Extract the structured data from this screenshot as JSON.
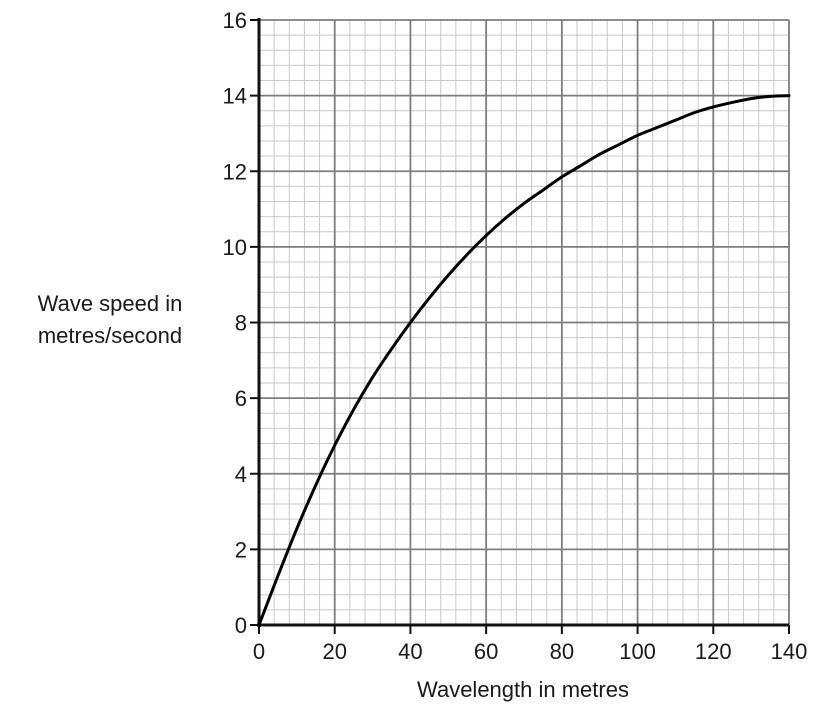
{
  "chart_data": {
    "type": "line",
    "title": "",
    "xlabel": "Wavelength in metres",
    "ylabel_lines": [
      "Wave speed in",
      "metres/second"
    ],
    "xlim": [
      0,
      140
    ],
    "ylim": [
      0,
      16
    ],
    "x_ticks": [
      0,
      20,
      40,
      60,
      80,
      100,
      120,
      140
    ],
    "y_ticks": [
      0,
      2,
      4,
      6,
      8,
      10,
      12,
      14,
      16
    ],
    "x_tick_labels": [
      "0",
      "20",
      "40",
      "60",
      "80",
      "100",
      "120",
      "140"
    ],
    "y_tick_labels": [
      "0",
      "2",
      "4",
      "6",
      "8",
      "10",
      "12",
      "14",
      "16"
    ],
    "minor_x_step": 4,
    "minor_y_step": 0.4,
    "grid": true,
    "series": [
      {
        "color": "#000000",
        "x": [
          0,
          5,
          10,
          15,
          20,
          25,
          30,
          35,
          40,
          45,
          50,
          55,
          60,
          65,
          70,
          75,
          80,
          85,
          90,
          95,
          100,
          105,
          110,
          115,
          120,
          125,
          130,
          135,
          140
        ],
        "y": [
          0,
          1.3,
          2.55,
          3.7,
          4.75,
          5.7,
          6.55,
          7.3,
          8.0,
          8.65,
          9.25,
          9.8,
          10.3,
          10.75,
          11.15,
          11.5,
          11.85,
          12.15,
          12.45,
          12.7,
          12.95,
          13.15,
          13.35,
          13.55,
          13.7,
          13.82,
          13.92,
          13.98,
          14.0
        ]
      }
    ]
  }
}
